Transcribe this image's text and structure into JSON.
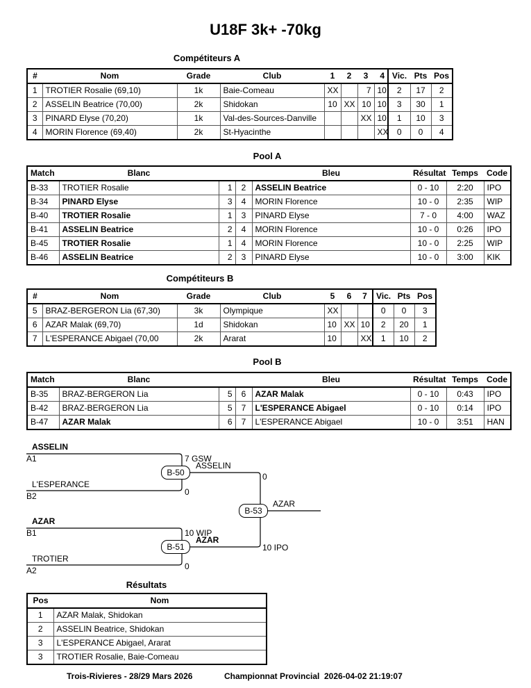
{
  "title": "U18F 3k+ -70kg",
  "competiteurs_a": {
    "title": "Compétiteurs A",
    "headers": [
      "#",
      "Nom",
      "Grade",
      "Club",
      "1",
      "2",
      "3",
      "4",
      "Vic.",
      "Pts",
      "Pos"
    ],
    "rows": [
      [
        "1",
        "TROTIER Rosalie (69,10)",
        "1k",
        "Baie-Comeau",
        "XX",
        "",
        "7",
        "10",
        "2",
        "17",
        "2"
      ],
      [
        "2",
        "ASSELIN Beatrice (70,00)",
        "2k",
        "Shidokan",
        "10",
        "XX",
        "10",
        "10",
        "3",
        "30",
        "1"
      ],
      [
        "3",
        "PINARD Elyse (70,20)",
        "1k",
        "Val-des-Sources-Danville",
        "",
        "",
        "XX",
        "10",
        "1",
        "10",
        "3"
      ],
      [
        "4",
        "MORIN Florence (69,40)",
        "2k",
        "St-Hyacinthe",
        "",
        "",
        "",
        "XX",
        "0",
        "0",
        "4"
      ]
    ]
  },
  "pool_a": {
    "title": "Pool A",
    "headers": [
      "Match",
      "Blanc",
      "",
      "",
      "Bleu",
      "Résultat",
      "Temps",
      "Code"
    ],
    "rows": [
      {
        "cells": [
          "B-33",
          "TROTIER Rosalie",
          "1",
          "2",
          "ASSELIN Beatrice",
          "0 - 10",
          "2:20",
          "IPO"
        ],
        "winner": "bleu"
      },
      {
        "cells": [
          "B-34",
          "PINARD Elyse",
          "3",
          "4",
          "MORIN Florence",
          "10 - 0",
          "2:35",
          "WIP"
        ],
        "winner": "blanc"
      },
      {
        "cells": [
          "B-40",
          "TROTIER Rosalie",
          "1",
          "3",
          "PINARD Elyse",
          "7 - 0",
          "4:00",
          "WAZ"
        ],
        "winner": "blanc"
      },
      {
        "cells": [
          "B-41",
          "ASSELIN Beatrice",
          "2",
          "4",
          "MORIN Florence",
          "10 - 0",
          "0:26",
          "IPO"
        ],
        "winner": "blanc"
      },
      {
        "cells": [
          "B-45",
          "TROTIER Rosalie",
          "1",
          "4",
          "MORIN Florence",
          "10 - 0",
          "2:25",
          "WIP"
        ],
        "winner": "blanc"
      },
      {
        "cells": [
          "B-46",
          "ASSELIN Beatrice",
          "2",
          "3",
          "PINARD Elyse",
          "10 - 0",
          "3:00",
          "KIK"
        ],
        "winner": "blanc"
      }
    ]
  },
  "competiteurs_b": {
    "title": "Compétiteurs B",
    "headers": [
      "#",
      "Nom",
      "Grade",
      "Club",
      "5",
      "6",
      "7",
      "Vic.",
      "Pts",
      "Pos"
    ],
    "rows": [
      [
        "5",
        "BRAZ-BERGERON Lia (67,30)",
        "3k",
        "Olympique",
        "XX",
        "",
        "",
        "0",
        "0",
        "3"
      ],
      [
        "6",
        "AZAR Malak (69,70)",
        "1d",
        "Shidokan",
        "10",
        "XX",
        "10",
        "2",
        "20",
        "1"
      ],
      [
        "7",
        "L'ESPERANCE Abigael (70,00",
        "2k",
        "Ararat",
        "10",
        "",
        "XX",
        "1",
        "10",
        "2"
      ]
    ]
  },
  "pool_b": {
    "title": "Pool B",
    "headers": [
      "Match",
      "Blanc",
      "",
      "",
      "Bleu",
      "Résultat",
      "Temps",
      "Code"
    ],
    "rows": [
      {
        "cells": [
          "B-35",
          "BRAZ-BERGERON Lia",
          "5",
          "6",
          "AZAR Malak",
          "0 - 10",
          "0:43",
          "IPO"
        ],
        "winner": "bleu"
      },
      {
        "cells": [
          "B-42",
          "BRAZ-BERGERON Lia",
          "5",
          "7",
          "L'ESPERANCE Abigael",
          "0 - 10",
          "0:14",
          "IPO"
        ],
        "winner": "bleu"
      },
      {
        "cells": [
          "B-47",
          "AZAR Malak",
          "6",
          "7",
          "L'ESPERANCE Abigael",
          "10 - 0",
          "3:51",
          "HAN"
        ],
        "winner": "blanc"
      }
    ]
  },
  "bracket": {
    "m1": {
      "id": "B-50",
      "top_name": "ASSELIN",
      "top_seed": "A1",
      "top_score": "7 GSW",
      "bottom_name": "L'ESPERANCE",
      "bottom_seed": "B2",
      "bottom_score": "0",
      "winner": "ASSELIN"
    },
    "m2": {
      "id": "B-51",
      "top_name": "AZAR",
      "top_seed": "B1",
      "top_score": "10 WIP",
      "bottom_name": "TROTIER",
      "bottom_seed": "A2",
      "bottom_score": "0",
      "winner": "AZAR"
    },
    "final": {
      "id": "B-53",
      "top_score": "0",
      "bottom_score": "10 IPO",
      "winner": "AZAR"
    }
  },
  "resultats": {
    "title": "Résultats",
    "headers": [
      "Pos",
      "Nom"
    ],
    "rows": [
      [
        "1",
        "AZAR Malak, Shidokan"
      ],
      [
        "2",
        "ASSELIN Beatrice, Shidokan"
      ],
      [
        "3",
        "L'ESPERANCE Abigael, Ararat"
      ],
      [
        "3",
        "TROTIER Rosalie, Baie-Comeau"
      ]
    ]
  },
  "footer": {
    "location": "Trois-Rivieres - 28/29 Mars 2026",
    "event": "Championnat Provincial",
    "timestamp": "2026-04-02 21:19:07"
  }
}
